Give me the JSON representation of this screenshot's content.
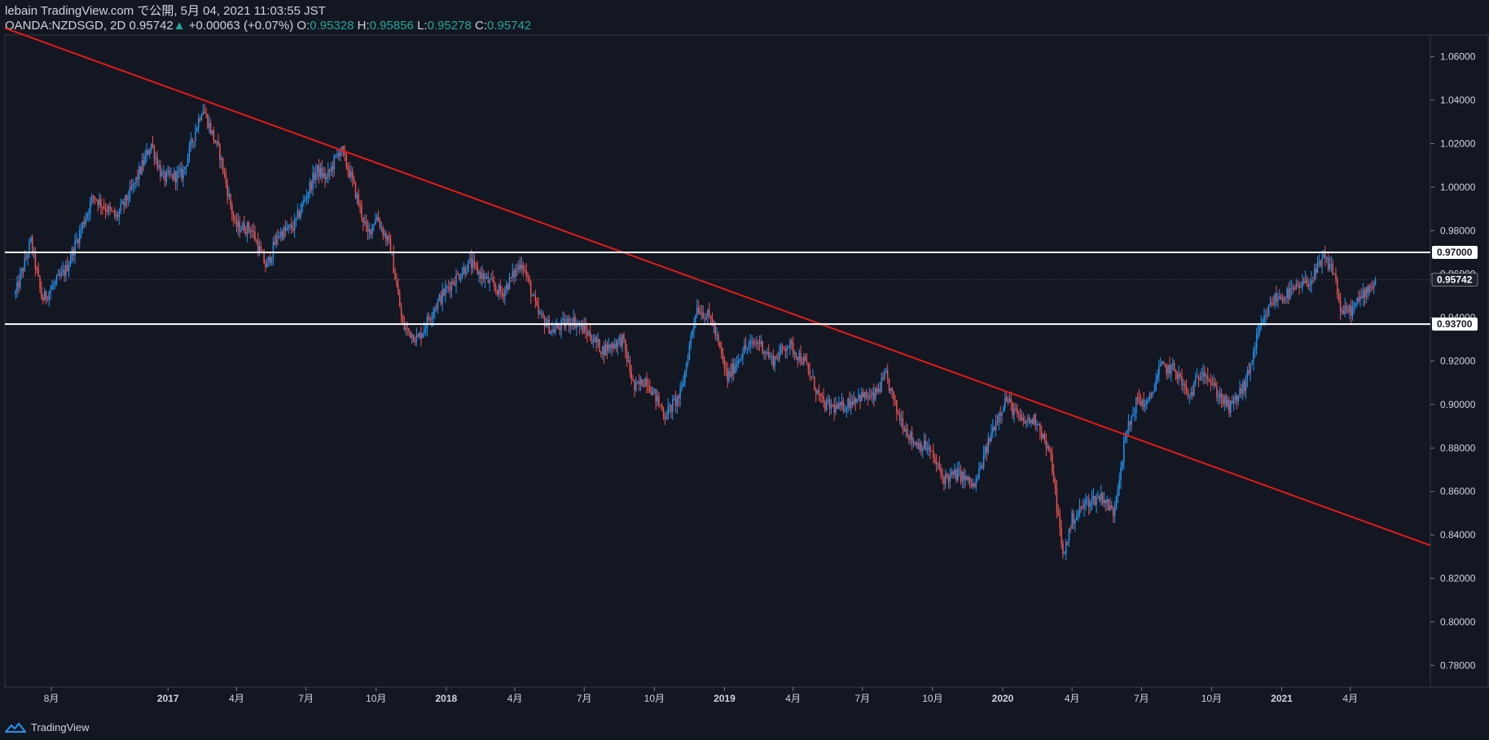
{
  "header": {
    "publish_line": "lebain TradingView.com で公開, 5月 04, 2021 11:03:55 JST",
    "symbol": "OANDA:NZDSGD, 2D",
    "last": "0.95742",
    "change": "+0.00063 (+0.07%)",
    "o_label": "O:",
    "o_value": "0.95328",
    "h_label": "H:",
    "h_value": "0.95856",
    "l_label": "L:",
    "l_value": "0.95278",
    "c_label": "C:",
    "c_value": "0.95742"
  },
  "footer": {
    "brand": "TradingView"
  },
  "colors": {
    "background": "#131722",
    "up": "#2196f3",
    "down": "#ef5350",
    "trendline": "#e51a1a",
    "hline": "#ffffff",
    "grid": "#2a2e39"
  },
  "chart_data": {
    "type": "candlestick",
    "symbol": "OANDA:NZDSGD",
    "timeframe": "2D",
    "y_ticks": [
      "1.06000",
      "1.04000",
      "1.02000",
      "1.00000",
      "0.98000",
      "0.96000",
      "0.94000",
      "0.92000",
      "0.90000",
      "0.88000",
      "0.86000",
      "0.84000",
      "0.82000",
      "0.80000",
      "0.78000"
    ],
    "ylim": [
      0.77,
      1.07
    ],
    "x_labels": [
      "8月",
      "2017",
      "4月",
      "7月",
      "10月",
      "2018",
      "4月",
      "7月",
      "10月",
      "2019",
      "4月",
      "7月",
      "10月",
      "2020",
      "4月",
      "7月",
      "10月",
      "2021",
      "4月"
    ],
    "x_label_bold": [
      false,
      true,
      false,
      false,
      false,
      true,
      false,
      false,
      false,
      true,
      false,
      false,
      false,
      true,
      false,
      false,
      false,
      true,
      false
    ],
    "x_label_dates": [
      "2016-08-01",
      "2017-01-01",
      "2017-04-01",
      "2017-07-01",
      "2017-10-01",
      "2018-01-01",
      "2018-04-01",
      "2018-07-01",
      "2018-10-01",
      "2019-01-01",
      "2019-04-01",
      "2019-07-01",
      "2019-10-01",
      "2020-01-01",
      "2020-04-01",
      "2020-07-01",
      "2020-10-01",
      "2021-01-01",
      "2021-04-01"
    ],
    "price_path": [
      [
        "2016-06-15",
        0.951
      ],
      [
        "2016-07-05",
        0.975
      ],
      [
        "2016-07-20",
        0.948
      ],
      [
        "2016-08-20",
        0.962
      ],
      [
        "2016-09-25",
        0.996
      ],
      [
        "2016-10-25",
        0.986
      ],
      [
        "2016-11-15",
        0.999
      ],
      [
        "2016-12-10",
        1.02
      ],
      [
        "2016-12-25",
        1.004
      ],
      [
        "2017-01-20",
        1.006
      ],
      [
        "2017-02-15",
        1.037
      ],
      [
        "2017-03-10",
        1.015
      ],
      [
        "2017-03-30",
        0.982
      ],
      [
        "2017-04-20",
        0.981
      ],
      [
        "2017-05-10",
        0.963
      ],
      [
        "2017-05-25",
        0.978
      ],
      [
        "2017-06-15",
        0.982
      ],
      [
        "2017-07-15",
        1.008
      ],
      [
        "2017-07-28",
        1.004
      ],
      [
        "2017-08-15",
        1.018
      ],
      [
        "2017-08-28",
        1.006
      ],
      [
        "2017-09-20",
        0.978
      ],
      [
        "2017-10-01",
        0.987
      ],
      [
        "2017-10-20",
        0.972
      ],
      [
        "2017-11-05",
        0.936
      ],
      [
        "2017-11-25",
        0.93
      ],
      [
        "2017-12-15",
        0.944
      ],
      [
        "2018-01-05",
        0.955
      ],
      [
        "2018-02-01",
        0.965
      ],
      [
        "2018-02-20",
        0.958
      ],
      [
        "2018-03-15",
        0.951
      ],
      [
        "2018-04-10",
        0.966
      ],
      [
        "2018-05-01",
        0.942
      ],
      [
        "2018-05-20",
        0.934
      ],
      [
        "2018-06-15",
        0.939
      ],
      [
        "2018-07-05",
        0.933
      ],
      [
        "2018-07-25",
        0.925
      ],
      [
        "2018-08-20",
        0.93
      ],
      [
        "2018-09-05",
        0.907
      ],
      [
        "2018-09-20",
        0.912
      ],
      [
        "2018-10-15",
        0.895
      ],
      [
        "2018-11-05",
        0.905
      ],
      [
        "2018-11-25",
        0.945
      ],
      [
        "2018-12-15",
        0.939
      ],
      [
        "2019-01-05",
        0.912
      ],
      [
        "2019-01-25",
        0.925
      ],
      [
        "2019-02-15",
        0.929
      ],
      [
        "2019-03-05",
        0.92
      ],
      [
        "2019-03-25",
        0.928
      ],
      [
        "2019-04-15",
        0.92
      ],
      [
        "2019-05-10",
        0.9
      ],
      [
        "2019-06-01",
        0.898
      ],
      [
        "2019-06-25",
        0.904
      ],
      [
        "2019-07-15",
        0.903
      ],
      [
        "2019-08-01",
        0.913
      ],
      [
        "2019-08-15",
        0.897
      ],
      [
        "2019-09-05",
        0.883
      ],
      [
        "2019-09-25",
        0.88
      ],
      [
        "2019-10-15",
        0.866
      ],
      [
        "2019-11-05",
        0.868
      ],
      [
        "2019-11-25",
        0.862
      ],
      [
        "2019-12-20",
        0.89
      ],
      [
        "2020-01-05",
        0.903
      ],
      [
        "2020-01-25",
        0.892
      ],
      [
        "2020-02-15",
        0.893
      ],
      [
        "2020-03-05",
        0.874
      ],
      [
        "2020-03-20",
        0.83
      ],
      [
        "2020-04-01",
        0.847
      ],
      [
        "2020-04-20",
        0.855
      ],
      [
        "2020-05-10",
        0.858
      ],
      [
        "2020-05-25",
        0.85
      ],
      [
        "2020-06-10",
        0.885
      ],
      [
        "2020-06-25",
        0.902
      ],
      [
        "2020-07-10",
        0.9
      ],
      [
        "2020-07-25",
        0.917
      ],
      [
        "2020-08-15",
        0.916
      ],
      [
        "2020-09-01",
        0.903
      ],
      [
        "2020-09-20",
        0.917
      ],
      [
        "2020-10-05",
        0.907
      ],
      [
        "2020-10-25",
        0.898
      ],
      [
        "2020-11-15",
        0.91
      ],
      [
        "2020-12-01",
        0.932
      ],
      [
        "2020-12-20",
        0.948
      ],
      [
        "2021-01-10",
        0.951
      ],
      [
        "2021-01-25",
        0.954
      ],
      [
        "2021-02-10",
        0.958
      ],
      [
        "2021-02-25",
        0.967
      ],
      [
        "2021-03-10",
        0.962
      ],
      [
        "2021-03-20",
        0.942
      ],
      [
        "2021-04-05",
        0.944
      ],
      [
        "2021-04-20",
        0.952
      ],
      [
        "2021-05-04",
        0.957
      ]
    ],
    "horizontal_lines": [
      {
        "price": 0.97,
        "label": "0.97000"
      },
      {
        "price": 0.937,
        "label": "0.93700"
      }
    ],
    "last_price_label": "0.95742",
    "trendline": {
      "start": [
        "2016-06-01",
        1.0732
      ],
      "end": [
        "2021-07-15",
        0.8352
      ]
    }
  }
}
